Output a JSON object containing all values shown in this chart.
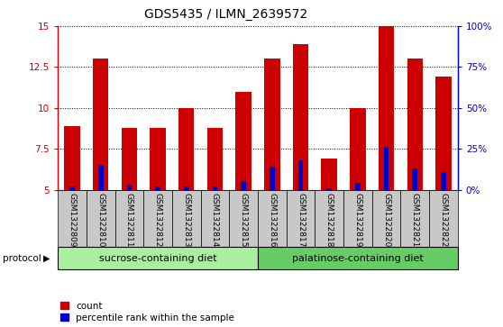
{
  "title": "GDS5435 / ILMN_2639572",
  "samples": [
    "GSM1322809",
    "GSM1322810",
    "GSM1322811",
    "GSM1322812",
    "GSM1322813",
    "GSM1322814",
    "GSM1322815",
    "GSM1322816",
    "GSM1322817",
    "GSM1322818",
    "GSM1322819",
    "GSM1322820",
    "GSM1322821",
    "GSM1322822"
  ],
  "count_values": [
    8.9,
    13.0,
    8.8,
    8.8,
    10.0,
    8.8,
    11.0,
    13.0,
    13.9,
    6.9,
    10.0,
    15.0,
    13.0,
    11.9
  ],
  "percentile_values": [
    5.2,
    6.5,
    5.3,
    5.2,
    5.2,
    5.2,
    5.5,
    6.4,
    6.8,
    5.1,
    5.4,
    7.6,
    6.3,
    6.1
  ],
  "baseline": 5.0,
  "ylim_left": [
    5.0,
    15.0
  ],
  "ylim_right": [
    0,
    100
  ],
  "yticks_left": [
    5.0,
    7.5,
    10.0,
    12.5,
    15.0
  ],
  "ytick_labels_left": [
    "5",
    "7.5",
    "10",
    "12.5",
    "15"
  ],
  "yticks_right_vals": [
    0,
    25,
    50,
    75,
    100
  ],
  "ytick_labels_right": [
    "0%",
    "25%",
    "50%",
    "75%",
    "100%"
  ],
  "group1_label": "sucrose-containing diet",
  "group2_label": "palatinose-containing diet",
  "group1_count": 7,
  "group2_count": 7,
  "bar_color_red": "#cc0000",
  "bar_color_blue": "#0000cc",
  "bar_width": 0.55,
  "blue_bar_width": 0.18,
  "group1_bg": "#aaeea0",
  "group2_bg": "#66cc66",
  "sample_bg": "#c8c8c8",
  "legend_label_red": "count",
  "legend_label_blue": "percentile rank within the sample",
  "title_fontsize": 10,
  "tick_fontsize": 7.5,
  "sample_fontsize": 6.5
}
